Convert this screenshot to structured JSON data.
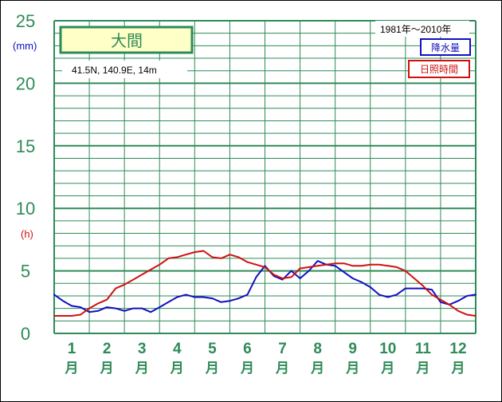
{
  "chart_data": {
    "type": "line",
    "title": "大間",
    "location": "41.5N,  140.9E,  14m",
    "period": "1981年～2010年",
    "y_ticks": [
      "0",
      "5",
      "10",
      "15",
      "20",
      "25"
    ],
    "y_unit_left": "(mm)",
    "y_unit_right": "(h)",
    "ylim": [
      0,
      25
    ],
    "months": [
      "1",
      "2",
      "3",
      "4",
      "5",
      "6",
      "7",
      "8",
      "9",
      "10",
      "11",
      "12"
    ],
    "month_suffix": "月",
    "xlim": [
      0.5,
      12.5
    ],
    "series": [
      {
        "name": "降水量",
        "color": "#1010c0",
        "x": [
          0.5,
          0.75,
          1.0,
          1.25,
          1.5,
          1.75,
          2.0,
          2.25,
          2.5,
          2.75,
          3.0,
          3.25,
          3.5,
          3.75,
          4.0,
          4.25,
          4.5,
          4.75,
          5.0,
          5.25,
          5.5,
          5.75,
          6.0,
          6.25,
          6.5,
          6.75,
          7.0,
          7.25,
          7.5,
          7.75,
          8.0,
          8.25,
          8.5,
          8.75,
          9.0,
          9.25,
          9.5,
          9.75,
          10.0,
          10.25,
          10.5,
          10.75,
          11.0,
          11.25,
          11.5,
          11.75,
          12.0,
          12.25,
          12.5
        ],
        "values": [
          3.1,
          2.6,
          2.2,
          2.1,
          1.7,
          1.8,
          2.1,
          2.0,
          1.8,
          2.0,
          2.0,
          1.7,
          2.1,
          2.5,
          2.9,
          3.1,
          2.9,
          2.9,
          2.8,
          2.5,
          2.6,
          2.8,
          3.1,
          4.5,
          5.4,
          4.6,
          4.3,
          5.0,
          4.4,
          5.0,
          5.8,
          5.5,
          5.4,
          4.9,
          4.4,
          4.1,
          3.7,
          3.1,
          2.9,
          3.1,
          3.6,
          3.6,
          3.6,
          3.5,
          2.5,
          2.3,
          2.6,
          3.0,
          3.1
        ]
      },
      {
        "name": "日照時間",
        "color": "#d01010",
        "x": [
          0.5,
          0.75,
          1.0,
          1.25,
          1.5,
          1.75,
          2.0,
          2.25,
          2.5,
          2.75,
          3.0,
          3.25,
          3.5,
          3.75,
          4.0,
          4.25,
          4.5,
          4.75,
          5.0,
          5.25,
          5.5,
          5.75,
          6.0,
          6.25,
          6.5,
          6.75,
          7.0,
          7.25,
          7.5,
          7.75,
          8.0,
          8.25,
          8.5,
          8.75,
          9.0,
          9.25,
          9.5,
          9.75,
          10.0,
          10.25,
          10.5,
          10.75,
          11.0,
          11.25,
          11.5,
          11.75,
          12.0,
          12.25,
          12.5
        ],
        "values": [
          1.4,
          1.4,
          1.4,
          1.5,
          2.0,
          2.4,
          2.7,
          3.6,
          3.9,
          4.3,
          4.7,
          5.1,
          5.5,
          6.0,
          6.1,
          6.3,
          6.5,
          6.6,
          6.1,
          6.0,
          6.3,
          6.1,
          5.7,
          5.5,
          5.3,
          4.7,
          4.4,
          4.5,
          5.2,
          5.3,
          5.4,
          5.5,
          5.6,
          5.6,
          5.4,
          5.4,
          5.5,
          5.5,
          5.4,
          5.3,
          5.0,
          4.4,
          3.8,
          3.1,
          2.7,
          2.3,
          1.8,
          1.5,
          1.4
        ]
      }
    ]
  }
}
